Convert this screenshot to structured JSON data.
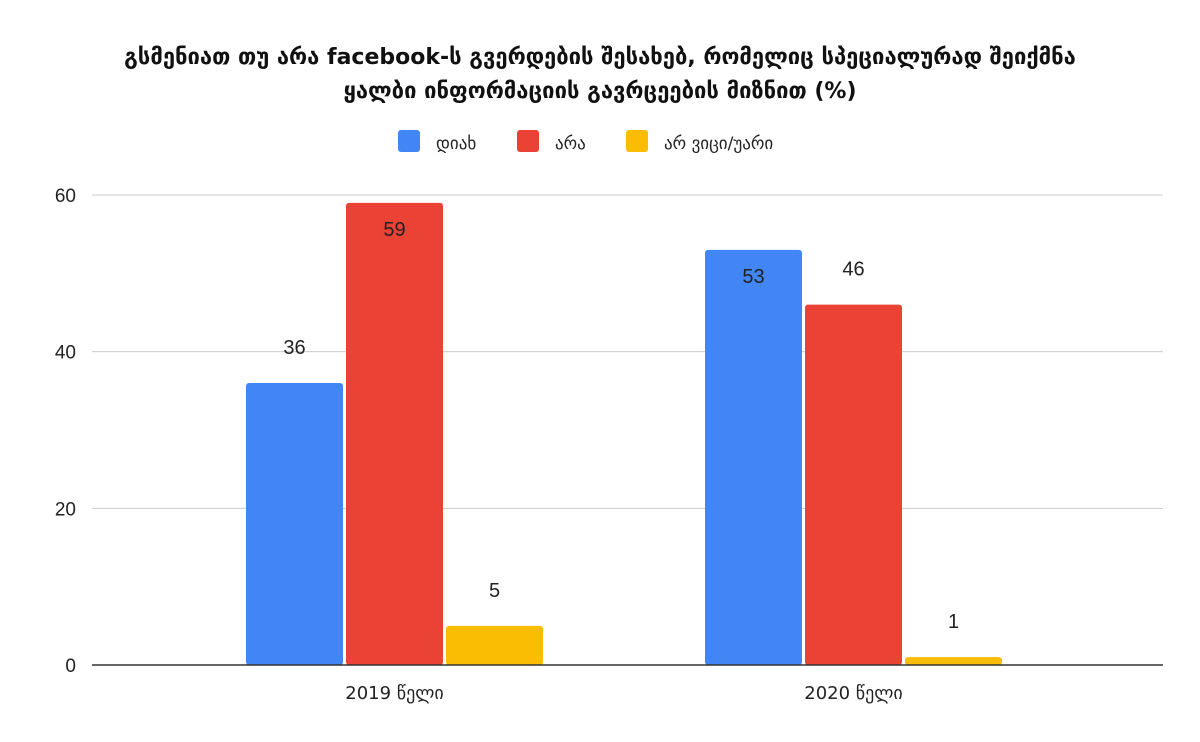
{
  "chart_data": {
    "type": "bar",
    "title_lines": [
      "გსმენიათ თუ არა facebook-ს გვერდების შესახებ, რომელიც სპეციალურად შეიქმნა",
      "ყალბი ინფორმაციის გავრცეების მიზნით (%)"
    ],
    "categories": [
      "2019 წელი",
      "2020 წელი"
    ],
    "series": [
      {
        "name": "დიახ",
        "color": "#4285F4",
        "values": [
          36,
          53
        ]
      },
      {
        "name": "არა",
        "color": "#EA4335",
        "values": [
          59,
          46
        ]
      },
      {
        "name": "არ ვიცი/უარი",
        "color": "#FBBC04",
        "values": [
          5,
          1
        ]
      }
    ],
    "yticks": [
      0,
      20,
      40,
      60
    ],
    "ylim": [
      0,
      60
    ],
    "grid": true,
    "legend_position": "top-center",
    "xlabel": "",
    "ylabel": ""
  }
}
